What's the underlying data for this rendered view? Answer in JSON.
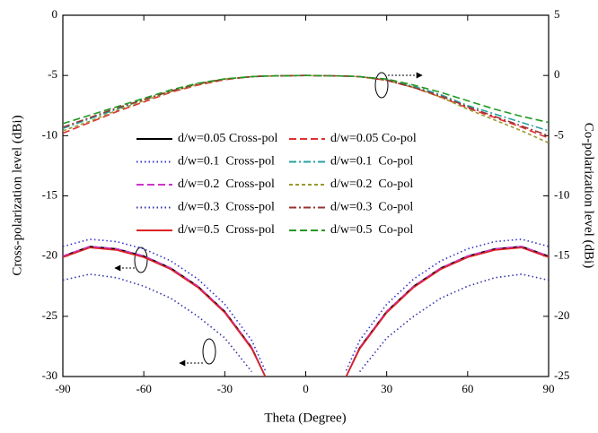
{
  "chart_data": {
    "type": "line",
    "x_label": "Theta (Degree)",
    "y_label": "Cross-polarization level (dBi)",
    "y2_label": "Co-polarization level (dBi)",
    "xlim": [
      -90,
      90
    ],
    "xticks": [
      -90,
      -60,
      -30,
      0,
      30,
      60,
      90
    ],
    "ylim": [
      -30,
      0
    ],
    "yticks": [
      0,
      -5,
      -10,
      -15,
      -20,
      -25,
      -30
    ],
    "y2lim": [
      -25,
      5
    ],
    "y2ticks": [
      5,
      0,
      -5,
      -10,
      -15,
      -20,
      -25
    ],
    "x": [
      -90,
      -80,
      -70,
      -60,
      -50,
      -40,
      -30,
      -20,
      -15,
      0,
      15,
      20,
      30,
      40,
      50,
      60,
      70,
      80,
      90
    ],
    "series": [
      {
        "name": "d/w=0.05 Cross-pol",
        "color": "#000000",
        "dash": "solid",
        "values": [
          -20,
          -19.2,
          -19.4,
          -20,
          -21,
          -22.5,
          -24.6,
          -27.6,
          -30,
          null,
          -30,
          -27.6,
          -24.6,
          -22.5,
          -21,
          -20,
          -19.4,
          -19.2,
          -20
        ]
      },
      {
        "name": "d/w=0.1  Cross-pol",
        "color": "#3333cc",
        "dash": "dotted",
        "values": [
          -19.2,
          -18.6,
          -18.8,
          -19.4,
          -20.4,
          -21.9,
          -24,
          -27,
          -29.5,
          null,
          -29.5,
          -27,
          -24,
          -21.9,
          -20.4,
          -19.4,
          -18.8,
          -18.6,
          -19.2
        ]
      },
      {
        "name": "d/w=0.2  Cross-pol",
        "color": "#cc33cc",
        "dash": "dashed",
        "values": [
          -20,
          -19.2,
          -19.4,
          -20,
          -21,
          -22.5,
          -24.6,
          -27.6,
          -30,
          null,
          -30,
          -27.6,
          -24.6,
          -22.5,
          -21,
          -20,
          -19.4,
          -19.2,
          -20
        ]
      },
      {
        "name": "d/w=0.3  Cross-pol",
        "color": "#3333aa",
        "dash": "dotted",
        "values": [
          -22,
          -21.5,
          -21.8,
          -22.5,
          -23.5,
          -25,
          -26.8,
          -29.6,
          null,
          null,
          null,
          -29.6,
          -26.8,
          -25,
          -23.5,
          -22.5,
          -21.8,
          -21.5,
          -22
        ]
      },
      {
        "name": "d/w=0.5  Cross-pol",
        "color": "#dd2222",
        "dash": "solid",
        "values": [
          -20.1,
          -19.3,
          -19.5,
          -20.1,
          -21.1,
          -22.6,
          -24.7,
          -27.7,
          -30,
          null,
          -30,
          -27.7,
          -24.7,
          -22.6,
          -21.1,
          -20.1,
          -19.5,
          -19.3,
          -20.1
        ]
      },
      {
        "name": "d/w=0.05 Co-pol",
        "color": "#e03030",
        "dash": "dashed",
        "axis": "y2",
        "values": [
          -4.8,
          -3.9,
          -3.0,
          -2.2,
          -1.4,
          -0.8,
          -0.35,
          -0.1,
          -0.05,
          0,
          -0.05,
          -0.1,
          -0.4,
          -1.0,
          -1.8,
          -2.7,
          -3.5,
          -4.3,
          -5.2
        ]
      },
      {
        "name": "d/w=0.1  Co-pol",
        "color": "#2aa0a0",
        "dash": "dashdot",
        "axis": "y2",
        "values": [
          -4.4,
          -3.6,
          -2.8,
          -2.0,
          -1.3,
          -0.7,
          -0.3,
          -0.1,
          -0.05,
          0,
          -0.05,
          -0.1,
          -0.35,
          -0.9,
          -1.6,
          -2.5,
          -3.2,
          -3.9,
          -4.6
        ]
      },
      {
        "name": "d/w=0.2  Co-pol",
        "color": "#999933",
        "dash": "shortdash",
        "axis": "y2",
        "values": [
          -4.6,
          -3.8,
          -2.9,
          -2.1,
          -1.35,
          -0.75,
          -0.3,
          -0.1,
          -0.05,
          0,
          -0.05,
          -0.1,
          -0.4,
          -1.0,
          -1.8,
          -2.8,
          -3.7,
          -4.6,
          -5.6
        ]
      },
      {
        "name": "d/w=0.3  Co-pol",
        "color": "#993333",
        "dash": "dashdot",
        "axis": "y2",
        "values": [
          -4.3,
          -3.5,
          -2.7,
          -2.0,
          -1.3,
          -0.7,
          -0.3,
          -0.1,
          -0.05,
          0,
          -0.05,
          -0.1,
          -0.4,
          -1.0,
          -1.7,
          -2.6,
          -3.4,
          -4.2,
          -5.0
        ]
      },
      {
        "name": "d/w=0.5  Co-pol",
        "color": "#229922",
        "dash": "dashed",
        "axis": "y2",
        "values": [
          -4.0,
          -3.3,
          -2.6,
          -1.9,
          -1.2,
          -0.65,
          -0.28,
          -0.1,
          -0.05,
          0,
          -0.05,
          -0.1,
          -0.3,
          -0.8,
          -1.4,
          -2.1,
          -2.8,
          -3.4,
          -3.9
        ]
      }
    ]
  }
}
